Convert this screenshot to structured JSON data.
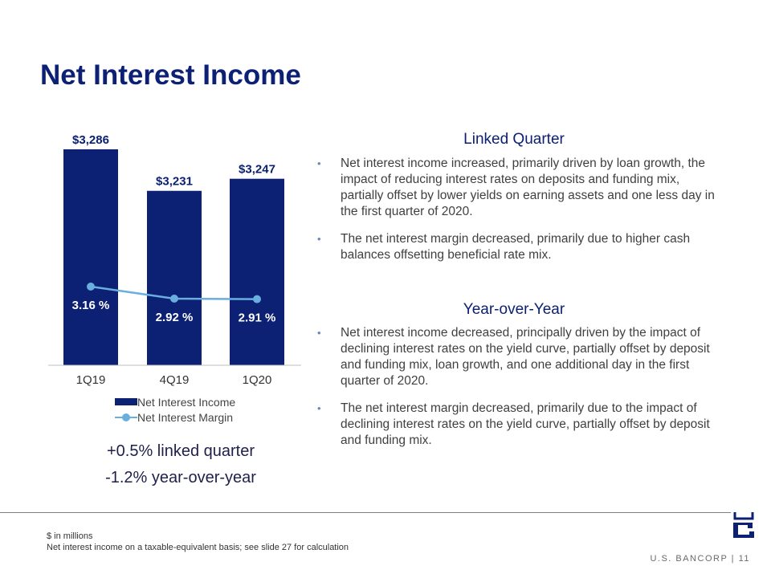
{
  "slide": {
    "title": "Net Interest Income",
    "page_number": "11",
    "brand": "U.S. BANCORP",
    "brand_separator": "|"
  },
  "changes": {
    "linked_quarter": "+0.5% linked quarter",
    "year_over_year": "-1.2% year-over-year"
  },
  "commentary": {
    "linked_quarter_heading": "Linked Quarter",
    "linked_quarter_bullets": [
      "Net interest income increased, primarily driven by loan growth, the impact of reducing interest rates on deposits and funding mix, partially offset by lower yields on earning assets and one less day in the first quarter of 2020.",
      "The net interest margin decreased, primarily due to higher cash balances offsetting beneficial rate mix."
    ],
    "yoy_heading": "Year-over-Year",
    "yoy_bullets": [
      "Net interest income decreased, principally driven by the impact of declining interest rates on the yield curve, partially offset by deposit and funding mix, loan growth, and one additional day in the first quarter of 2020.",
      "The net interest margin decreased, primarily due to the impact of declining interest rates on the yield curve, partially offset by deposit and funding mix."
    ]
  },
  "footnotes": {
    "line1": "$ in millions",
    "line2": "Net interest income on a taxable-equivalent basis; see slide 27 for calculation"
  },
  "colors": {
    "title": "#0c2074",
    "bar": "#0c2074",
    "line": "#6aaee0",
    "bar_label_text": "#0c2074",
    "margin_label_text": "#ffffff",
    "axis": "#bfbfbf",
    "tick_text": "#333333"
  },
  "chart_data": {
    "type": "bar",
    "categories": [
      "1Q19",
      "4Q19",
      "1Q20"
    ],
    "series": [
      {
        "name": "Net Interest Income",
        "type": "bar",
        "values": [
          3286,
          3231,
          3247
        ],
        "labels": [
          "$3,286",
          "$3,231",
          "$3,247"
        ]
      },
      {
        "name": "Net Interest Margin",
        "type": "line",
        "values": [
          3.16,
          2.92,
          2.91
        ],
        "labels": [
          "3.16 %",
          "2.92 %",
          "2.91 %"
        ]
      }
    ],
    "legend_position": "bottom",
    "grid": false
  }
}
